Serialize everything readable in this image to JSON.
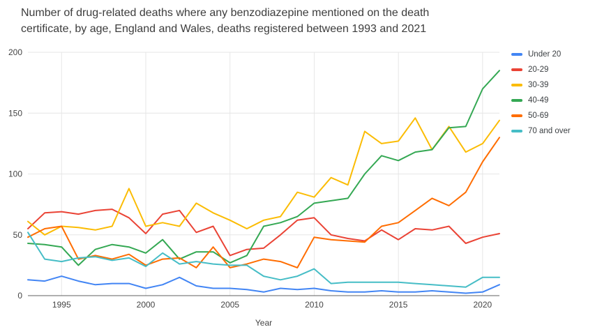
{
  "title": {
    "line1": "Number of drug-related deaths where any benzodiazepine mentioned on the death",
    "line2": "certificate, by age, England and Wales, deaths registered between 1993 and 2021"
  },
  "chart_data": {
    "type": "line",
    "title": "Number of drug-related deaths where any benzodiazepine mentioned on the death certificate, by age, England and Wales, deaths registered between 1993 and 2021",
    "xlabel": "Year",
    "ylabel": "",
    "ylim": [
      0,
      200
    ],
    "yticks": [
      0,
      50,
      100,
      150,
      200
    ],
    "xticks": [
      1995,
      2000,
      2005,
      2010,
      2015,
      2020
    ],
    "grid": true,
    "legend_position": "right",
    "axis": {
      "tick_color": "#444444",
      "grid_color": "#e6e6e6",
      "baseline_color": "#616161",
      "background": "#ffffff"
    },
    "x": [
      1993,
      1994,
      1995,
      1996,
      1997,
      1998,
      1999,
      2000,
      2001,
      2002,
      2003,
      2004,
      2005,
      2006,
      2007,
      2008,
      2009,
      2010,
      2011,
      2012,
      2013,
      2014,
      2015,
      2016,
      2017,
      2018,
      2019,
      2020,
      2021
    ],
    "series": [
      {
        "name": "Under 20",
        "color": "#4285f4",
        "values": [
          13,
          12,
          16,
          12,
          9,
          10,
          10,
          6,
          9,
          15,
          8,
          6,
          6,
          5,
          3,
          6,
          5,
          6,
          4,
          3,
          3,
          4,
          3,
          3,
          4,
          3,
          2,
          3,
          9
        ]
      },
      {
        "name": "20-29",
        "color": "#ea4335",
        "values": [
          55,
          68,
          69,
          67,
          70,
          71,
          64,
          51,
          67,
          70,
          52,
          57,
          33,
          38,
          39,
          50,
          62,
          64,
          50,
          47,
          45,
          54,
          46,
          55,
          54,
          57,
          43,
          48,
          51
        ]
      },
      {
        "name": "30-39",
        "color": "#fbbc04",
        "values": [
          61,
          50,
          57,
          56,
          54,
          57,
          88,
          57,
          60,
          57,
          76,
          68,
          62,
          55,
          62,
          65,
          85,
          81,
          97,
          91,
          135,
          125,
          127,
          146,
          120,
          139,
          118,
          125,
          144
        ]
      },
      {
        "name": "40-49",
        "color": "#34a853",
        "values": [
          43,
          42,
          40,
          25,
          38,
          42,
          40,
          35,
          46,
          30,
          36,
          36,
          27,
          33,
          57,
          60,
          65,
          76,
          78,
          80,
          100,
          115,
          111,
          118,
          120,
          138,
          139,
          170,
          185
        ]
      },
      {
        "name": "50-69",
        "color": "#ff6d01",
        "values": [
          48,
          55,
          57,
          30,
          33,
          30,
          34,
          25,
          30,
          31,
          23,
          40,
          23,
          26,
          30,
          28,
          23,
          48,
          46,
          45,
          44,
          57,
          60,
          70,
          80,
          74,
          85,
          110,
          130
        ]
      },
      {
        "name": "70 and over",
        "color": "#46bdc6",
        "values": [
          52,
          30,
          28,
          31,
          32,
          29,
          31,
          24,
          35,
          26,
          28,
          26,
          25,
          25,
          16,
          13,
          16,
          22,
          10,
          11,
          11,
          11,
          11,
          10,
          9,
          8,
          7,
          15,
          15
        ]
      }
    ]
  }
}
